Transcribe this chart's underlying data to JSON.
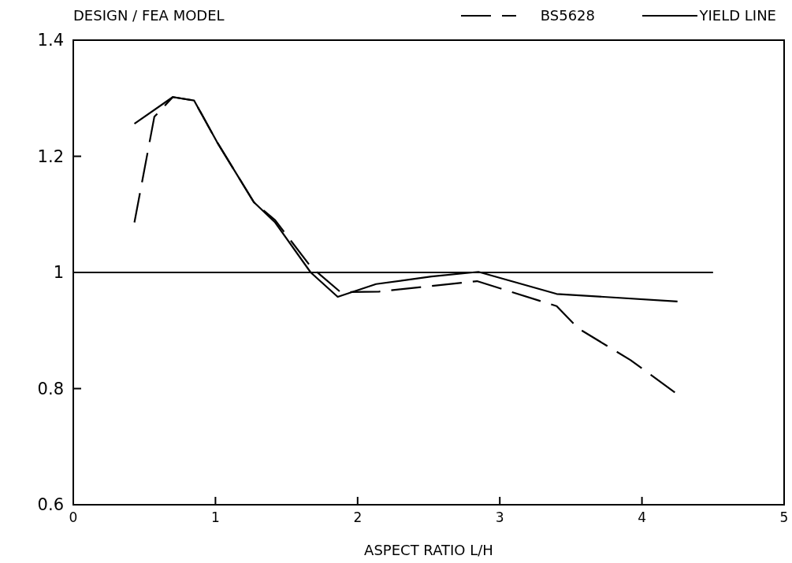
{
  "chart_data": {
    "type": "line",
    "title": "DESIGN / FEA MODEL",
    "xlabel": "ASPECT RATIO  L/H",
    "xlim": [
      0,
      5
    ],
    "xticks": [
      0,
      1,
      2,
      3,
      4,
      5
    ],
    "ylim": [
      0.6,
      1.4
    ],
    "yticks": [
      0.6,
      0.8,
      1,
      1.2,
      1.4
    ],
    "grid": false,
    "legend": "top right",
    "marker": "none",
    "series": [
      {
        "name": "BS5628",
        "color": "#000000",
        "line_style": "dashed",
        "x": [
          0.43,
          0.57,
          0.7,
          0.85,
          1.01,
          1.27,
          1.42,
          1.67,
          1.88,
          2.15,
          2.84,
          3.4,
          3.55,
          3.92,
          4.25
        ],
        "values": [
          1.086,
          1.268,
          1.302,
          1.296,
          1.225,
          1.121,
          1.09,
          1.01,
          0.966,
          0.967,
          0.985,
          0.942,
          0.904,
          0.849,
          0.79
        ]
      },
      {
        "name": "YIELD LINE",
        "color": "#000000",
        "line_style": "solid",
        "x": [
          0.43,
          0.7,
          0.85,
          1.01,
          1.27,
          1.42,
          1.67,
          1.86,
          2.13,
          2.52,
          2.85,
          3.4,
          4.25
        ],
        "values": [
          1.256,
          1.302,
          1.296,
          1.225,
          1.121,
          1.086,
          1.0,
          0.958,
          0.98,
          0.993,
          1.001,
          0.963,
          0.95
        ]
      },
      {
        "color": "#000000",
        "line_style": "solid",
        "x": [
          0,
          4.5
        ],
        "values": [
          1,
          1
        ]
      }
    ]
  }
}
